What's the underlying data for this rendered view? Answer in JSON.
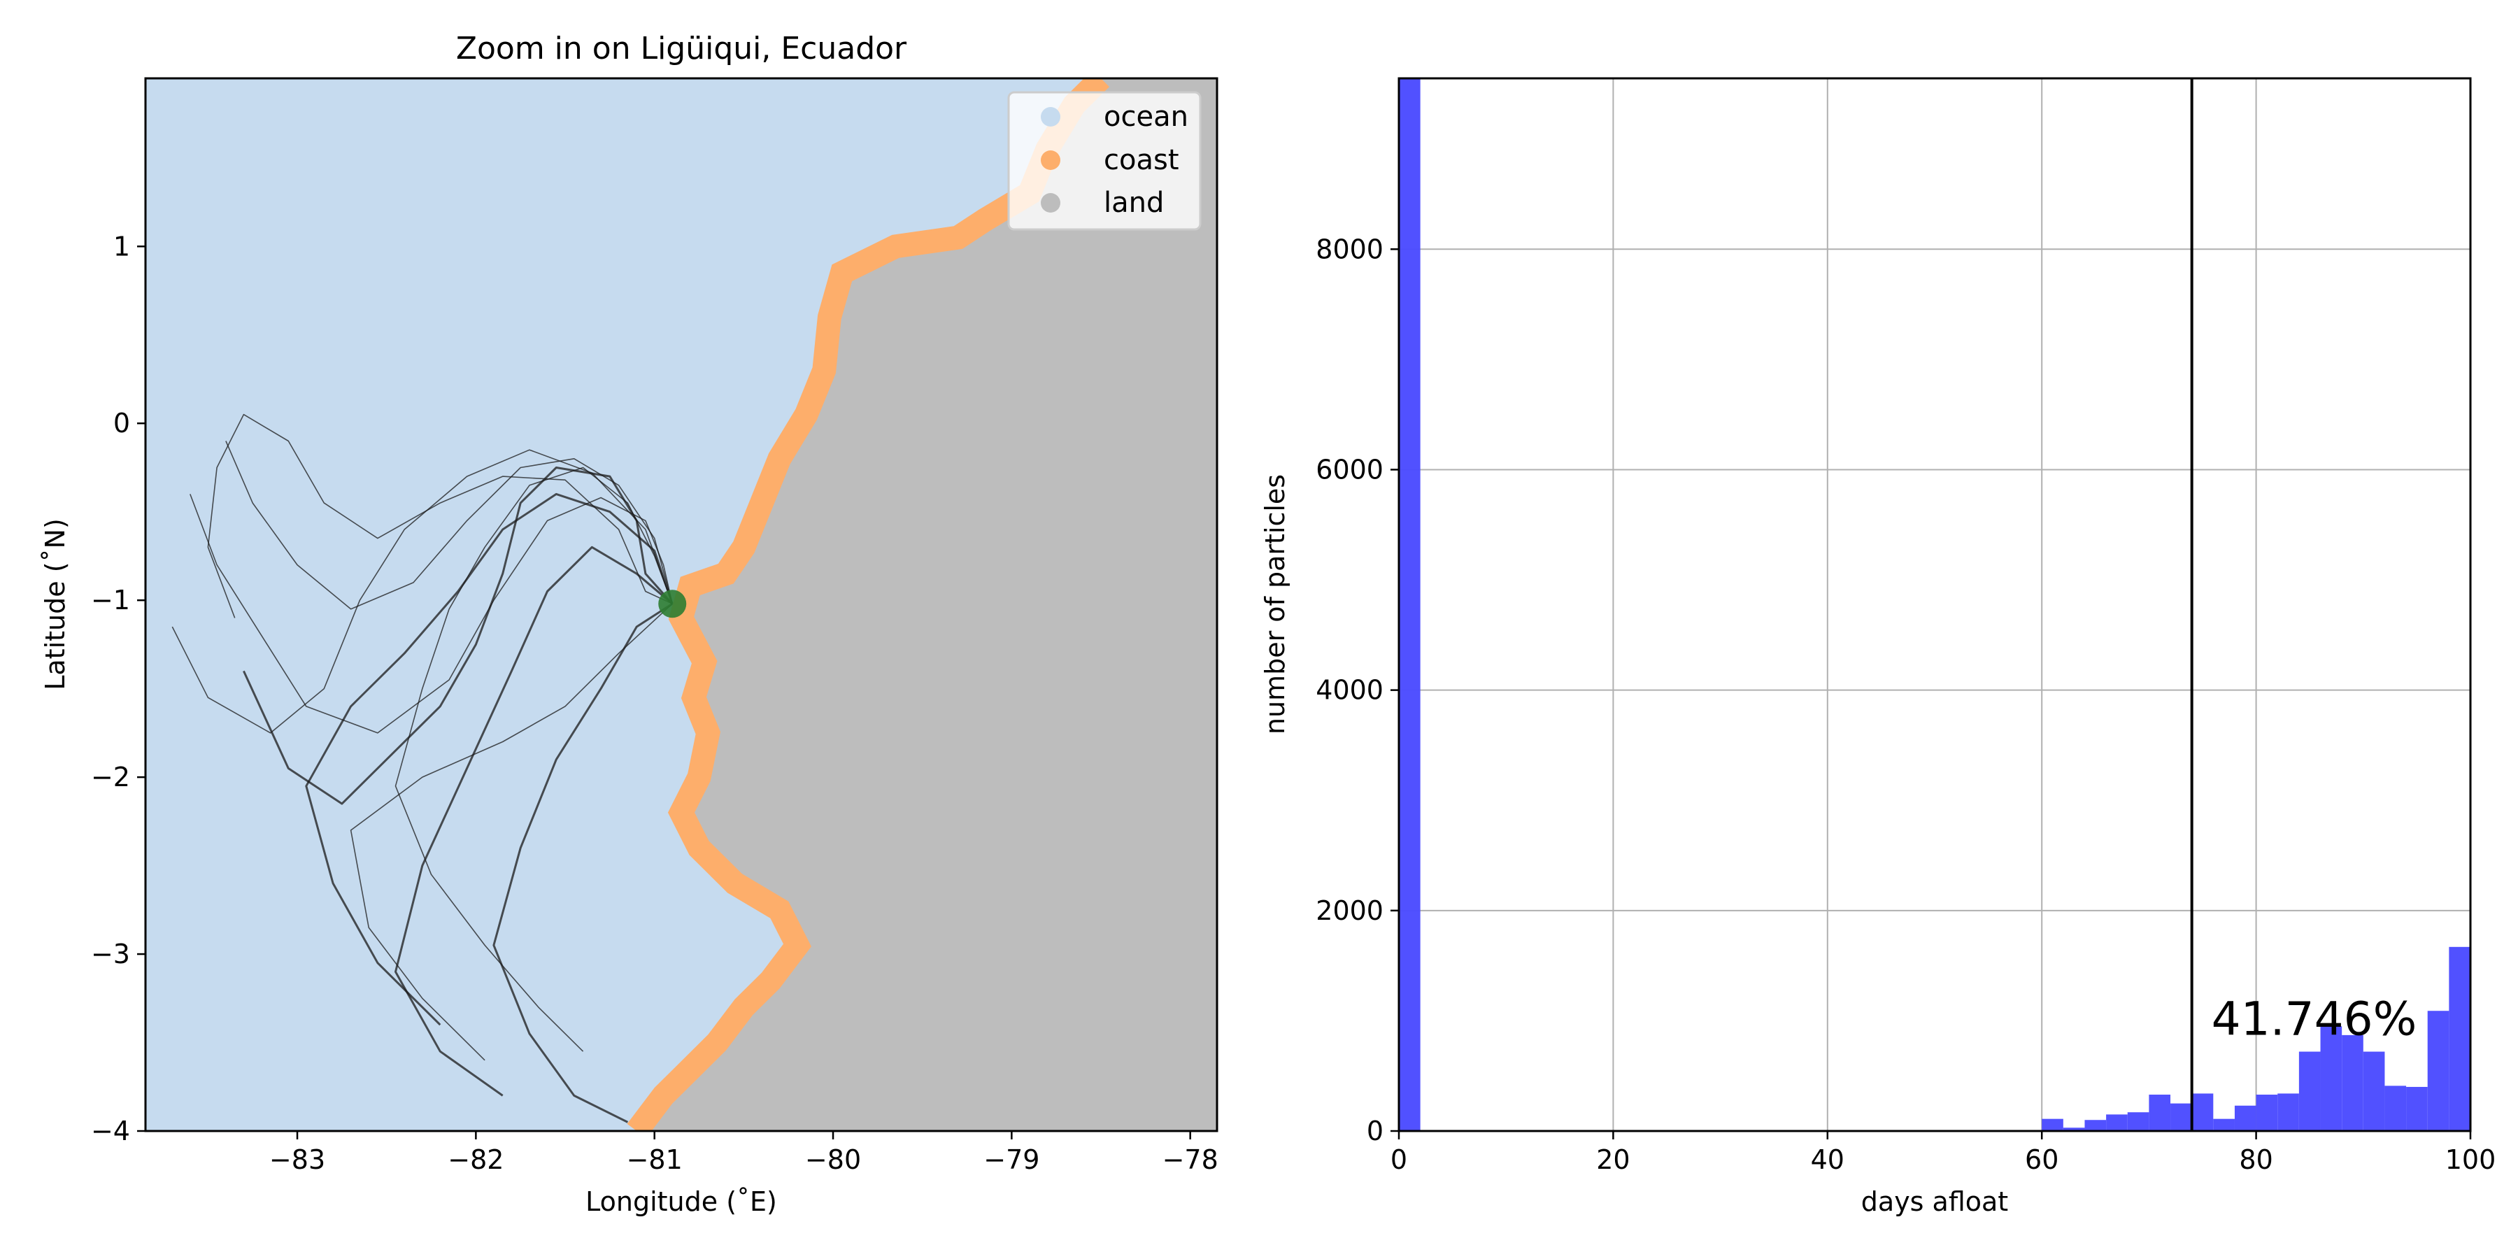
{
  "chart_data": [
    {
      "type": "map",
      "title": "Zoom in on Ligüiqui, Ecuador",
      "xlabel": "Longitude (˚E)",
      "ylabel": "Latitude (˚N)",
      "xlim": [
        -83.85,
        -77.85
      ],
      "ylim": [
        -4.0,
        1.95
      ],
      "xticks": [
        -83,
        -82,
        -81,
        -80,
        -79,
        -78
      ],
      "xtick_labels": [
        "−83",
        "−82",
        "−81",
        "−80",
        "−79",
        "−78"
      ],
      "yticks": [
        -4,
        -3,
        -2,
        -1,
        0,
        1
      ],
      "ytick_labels": [
        "−4",
        "−3",
        "−2",
        "−1",
        "0",
        "1"
      ],
      "legend_position": "top-right",
      "legend": [
        {
          "label": "ocean",
          "color": "#c6dbef"
        },
        {
          "label": "coast",
          "color": "#fdae6b"
        },
        {
          "label": "land",
          "color": "#bdbdbd"
        }
      ],
      "release_point": {
        "lon": -80.9,
        "lat": -1.02,
        "color": "#2e7d32"
      },
      "coastline": [
        [
          -81.1,
          -4.0
        ],
        [
          -80.95,
          -3.8
        ],
        [
          -80.8,
          -3.65
        ],
        [
          -80.65,
          -3.5
        ],
        [
          -80.5,
          -3.3
        ],
        [
          -80.35,
          -3.15
        ],
        [
          -80.2,
          -2.95
        ],
        [
          -80.3,
          -2.75
        ],
        [
          -80.55,
          -2.6
        ],
        [
          -80.75,
          -2.4
        ],
        [
          -80.85,
          -2.2
        ],
        [
          -80.75,
          -2.0
        ],
        [
          -80.7,
          -1.75
        ],
        [
          -80.78,
          -1.55
        ],
        [
          -80.72,
          -1.35
        ],
        [
          -80.85,
          -1.1
        ],
        [
          -80.8,
          -0.92
        ],
        [
          -80.6,
          -0.85
        ],
        [
          -80.5,
          -0.7
        ],
        [
          -80.4,
          -0.45
        ],
        [
          -80.3,
          -0.2
        ],
        [
          -80.15,
          0.05
        ],
        [
          -80.05,
          0.3
        ],
        [
          -80.02,
          0.6
        ],
        [
          -79.95,
          0.85
        ],
        [
          -79.65,
          1.0
        ],
        [
          -79.3,
          1.05
        ],
        [
          -79.15,
          1.15
        ],
        [
          -78.9,
          1.3
        ],
        [
          -78.8,
          1.55
        ],
        [
          -78.65,
          1.8
        ],
        [
          -78.5,
          1.95
        ]
      ],
      "trajectories": [
        [
          [
            -80.9,
            -1.02
          ],
          [
            -81.05,
            -0.85
          ],
          [
            -81.1,
            -0.55
          ],
          [
            -81.25,
            -0.3
          ],
          [
            -81.55,
            -0.25
          ],
          [
            -81.75,
            -0.45
          ],
          [
            -81.85,
            -0.85
          ],
          [
            -82.0,
            -1.25
          ],
          [
            -82.2,
            -1.6
          ],
          [
            -82.5,
            -1.9
          ],
          [
            -82.75,
            -2.15
          ],
          [
            -83.05,
            -1.95
          ],
          [
            -83.3,
            -1.4
          ]
        ],
        [
          [
            -80.9,
            -1.02
          ],
          [
            -81.0,
            -0.75
          ],
          [
            -81.15,
            -0.45
          ],
          [
            -81.4,
            -0.25
          ],
          [
            -81.7,
            -0.35
          ],
          [
            -81.95,
            -0.7
          ],
          [
            -82.15,
            -1.05
          ],
          [
            -82.3,
            -1.5
          ],
          [
            -82.45,
            -2.05
          ],
          [
            -82.25,
            -2.55
          ],
          [
            -81.95,
            -2.95
          ],
          [
            -81.65,
            -3.3
          ],
          [
            -81.4,
            -3.55
          ]
        ],
        [
          [
            -80.9,
            -1.02
          ],
          [
            -81.05,
            -0.95
          ],
          [
            -81.2,
            -0.6
          ],
          [
            -81.5,
            -0.32
          ],
          [
            -81.85,
            -0.3
          ],
          [
            -82.2,
            -0.45
          ],
          [
            -82.55,
            -0.65
          ],
          [
            -82.85,
            -0.45
          ],
          [
            -83.05,
            -0.1
          ],
          [
            -83.3,
            0.05
          ],
          [
            -83.45,
            -0.25
          ],
          [
            -83.5,
            -0.7
          ],
          [
            -83.35,
            -1.1
          ]
        ],
        [
          [
            -80.9,
            -1.02
          ],
          [
            -81.1,
            -1.15
          ],
          [
            -81.3,
            -1.5
          ],
          [
            -81.55,
            -1.9
          ],
          [
            -81.75,
            -2.4
          ],
          [
            -81.9,
            -2.95
          ],
          [
            -81.7,
            -3.45
          ],
          [
            -81.45,
            -3.8
          ],
          [
            -81.15,
            -3.95
          ]
        ],
        [
          [
            -80.9,
            -1.02
          ],
          [
            -81.0,
            -0.65
          ],
          [
            -81.2,
            -0.35
          ],
          [
            -81.45,
            -0.2
          ],
          [
            -81.75,
            -0.25
          ],
          [
            -82.05,
            -0.55
          ],
          [
            -82.35,
            -0.9
          ],
          [
            -82.7,
            -1.05
          ],
          [
            -83.0,
            -0.8
          ],
          [
            -83.25,
            -0.45
          ],
          [
            -83.4,
            -0.1
          ]
        ],
        [
          [
            -80.9,
            -1.02
          ],
          [
            -80.95,
            -0.8
          ],
          [
            -81.05,
            -0.55
          ],
          [
            -81.3,
            -0.42
          ],
          [
            -81.6,
            -0.55
          ],
          [
            -81.9,
            -1.0
          ],
          [
            -82.15,
            -1.45
          ],
          [
            -82.55,
            -1.75
          ],
          [
            -82.95,
            -1.6
          ],
          [
            -83.2,
            -1.2
          ],
          [
            -83.45,
            -0.8
          ],
          [
            -83.6,
            -0.4
          ]
        ],
        [
          [
            -80.9,
            -1.02
          ],
          [
            -81.1,
            -0.85
          ],
          [
            -81.35,
            -0.7
          ],
          [
            -81.6,
            -0.95
          ],
          [
            -81.8,
            -1.4
          ],
          [
            -82.05,
            -1.95
          ],
          [
            -82.3,
            -2.5
          ],
          [
            -82.45,
            -3.1
          ],
          [
            -82.2,
            -3.55
          ],
          [
            -81.85,
            -3.8
          ]
        ],
        [
          [
            -80.9,
            -1.02
          ],
          [
            -81.05,
            -0.6
          ],
          [
            -81.35,
            -0.28
          ],
          [
            -81.7,
            -0.15
          ],
          [
            -82.05,
            -0.3
          ],
          [
            -82.4,
            -0.6
          ],
          [
            -82.65,
            -1.0
          ],
          [
            -82.85,
            -1.5
          ],
          [
            -83.15,
            -1.75
          ],
          [
            -83.5,
            -1.55
          ],
          [
            -83.7,
            -1.15
          ]
        ],
        [
          [
            -80.9,
            -1.02
          ],
          [
            -81.2,
            -1.3
          ],
          [
            -81.5,
            -1.6
          ],
          [
            -81.85,
            -1.8
          ],
          [
            -82.3,
            -2.0
          ],
          [
            -82.7,
            -2.3
          ],
          [
            -82.6,
            -2.85
          ],
          [
            -82.3,
            -3.25
          ],
          [
            -81.95,
            -3.6
          ]
        ],
        [
          [
            -80.9,
            -1.02
          ],
          [
            -81.0,
            -0.72
          ],
          [
            -81.25,
            -0.5
          ],
          [
            -81.55,
            -0.4
          ],
          [
            -81.85,
            -0.6
          ],
          [
            -82.1,
            -0.95
          ],
          [
            -82.4,
            -1.3
          ],
          [
            -82.7,
            -1.6
          ],
          [
            -82.95,
            -2.05
          ],
          [
            -82.8,
            -2.6
          ],
          [
            -82.55,
            -3.05
          ],
          [
            -82.2,
            -3.4
          ]
        ]
      ]
    },
    {
      "type": "bar",
      "title": "",
      "xlabel": "days afloat",
      "ylabel": "number of particles",
      "xlim": [
        0,
        100
      ],
      "ylim": [
        0,
        9550
      ],
      "xticks": [
        0,
        20,
        40,
        60,
        80,
        100
      ],
      "yticks": [
        0,
        2000,
        4000,
        6000,
        8000
      ],
      "grid": true,
      "bar_color": "#4b4bff",
      "vline_x": 74,
      "annotation": "41.746%",
      "bins": [
        {
          "x0": 0,
          "x1": 2,
          "value": 9550
        },
        {
          "x0": 60,
          "x1": 62,
          "value": 110
        },
        {
          "x0": 62,
          "x1": 64,
          "value": 30
        },
        {
          "x0": 64,
          "x1": 66,
          "value": 100
        },
        {
          "x0": 66,
          "x1": 68,
          "value": 150
        },
        {
          "x0": 68,
          "x1": 70,
          "value": 170
        },
        {
          "x0": 70,
          "x1": 72,
          "value": 330
        },
        {
          "x0": 72,
          "x1": 74,
          "value": 250
        },
        {
          "x0": 74,
          "x1": 76,
          "value": 340
        },
        {
          "x0": 76,
          "x1": 78,
          "value": 110
        },
        {
          "x0": 78,
          "x1": 80,
          "value": 230
        },
        {
          "x0": 80,
          "x1": 82,
          "value": 330
        },
        {
          "x0": 82,
          "x1": 84,
          "value": 340
        },
        {
          "x0": 84,
          "x1": 86,
          "value": 720
        },
        {
          "x0": 86,
          "x1": 88,
          "value": 950
        },
        {
          "x0": 88,
          "x1": 90,
          "value": 870
        },
        {
          "x0": 90,
          "x1": 92,
          "value": 720
        },
        {
          "x0": 92,
          "x1": 94,
          "value": 410
        },
        {
          "x0": 94,
          "x1": 96,
          "value": 400
        },
        {
          "x0": 96,
          "x1": 98,
          "value": 1090
        },
        {
          "x0": 98,
          "x1": 100,
          "value": 1670
        }
      ]
    }
  ]
}
